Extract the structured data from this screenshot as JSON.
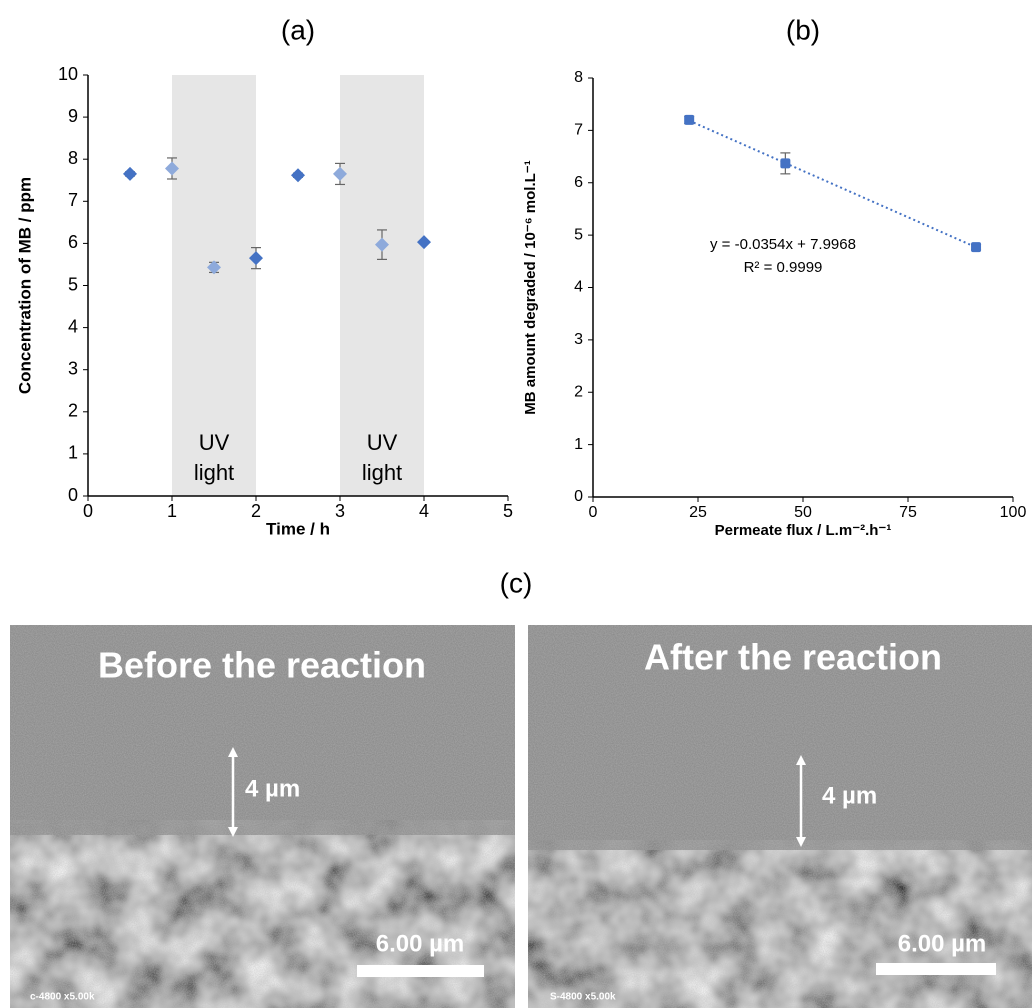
{
  "chart_data": [
    {
      "type": "scatter",
      "title": "(a)",
      "xlabel": "Time / h",
      "ylabel": "Concentration of MB / ppm",
      "x": [
        0.5,
        1,
        1.5,
        2,
        2.5,
        3,
        3.5,
        4
      ],
      "values": [
        7.65,
        7.78,
        5.43,
        5.65,
        7.62,
        7.65,
        5.97,
        6.03
      ],
      "errors": [
        0.05,
        0.25,
        0.12,
        0.25,
        0.05,
        0.25,
        0.35,
        0.03
      ],
      "colors": [
        "#4472c4",
        "#8eaadb",
        "#8eaadb",
        "#4472c4",
        "#4472c4",
        "#8eaadb",
        "#8eaadb",
        "#4472c4"
      ],
      "marker": "diamond",
      "shaded": [
        {
          "from": 1,
          "to": 2,
          "label": [
            "UV",
            "light"
          ]
        },
        {
          "from": 3,
          "to": 4,
          "label": [
            "UV",
            "light"
          ]
        }
      ],
      "xlim": [
        0,
        5
      ],
      "xticks": [
        0,
        1,
        2,
        3,
        4,
        5
      ],
      "ylim": [
        0,
        10
      ],
      "yticks": [
        0,
        1,
        2,
        3,
        4,
        5,
        6,
        7,
        8,
        9,
        10
      ]
    },
    {
      "type": "scatter",
      "title": "(b)",
      "xlabel": "Permeate flux / L.m⁻².h⁻¹",
      "ylabel": "MB amount degraded / 10⁻⁶ mol.L⁻¹",
      "x": [
        22.9,
        45.8,
        91.2
      ],
      "values": [
        7.2,
        6.37,
        4.77
      ],
      "errors": [
        0.07,
        0.2,
        0.05
      ],
      "colors": [
        "#4472c4",
        "#4472c4",
        "#4472c4"
      ],
      "marker": "square",
      "trendline": {
        "slope": -0.0354,
        "intercept": 7.9968,
        "equation": "y = -0.0354x + 7.9968",
        "r2": "R² = 0.9999",
        "color": "#4472c4"
      },
      "xlim": [
        0,
        100
      ],
      "xticks": [
        0,
        25,
        50,
        75,
        100
      ],
      "ylim": [
        0,
        8
      ],
      "yticks": [
        0,
        1,
        2,
        3,
        4,
        5,
        6,
        7,
        8
      ]
    }
  ],
  "panel_c": "(c)",
  "sem_images": [
    {
      "title": "Before the reaction",
      "thickness": "4 µm",
      "scale_bar": "6.00 µm",
      "instrument": "c-4800 x5.00k"
    },
    {
      "title": "After the reaction",
      "thickness": "4 µm",
      "scale_bar": "6.00 µm",
      "instrument": "S-4800 x5.00k"
    }
  ]
}
